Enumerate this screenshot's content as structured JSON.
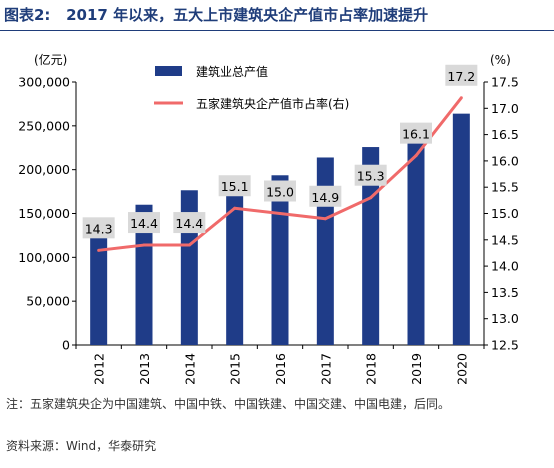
{
  "header": {
    "label": "图表2:",
    "title": "2017 年以来，五大上市建筑央企产值市占率加速提升"
  },
  "chart_data": {
    "type": "bar+line",
    "categories": [
      "2012",
      "2013",
      "2014",
      "2015",
      "2016",
      "2017",
      "2018",
      "2019",
      "2020"
    ],
    "series": [
      {
        "name": "建筑业总产值",
        "type": "bar",
        "axis": "left",
        "color": "#1f3c88",
        "values": [
          137000,
          160000,
          176500,
          180800,
          193600,
          213900,
          225800,
          248400,
          263900
        ]
      },
      {
        "name": "五家建筑央企产值市占率(右)",
        "type": "line",
        "axis": "right",
        "color": "#f06a6a",
        "values": [
          14.3,
          14.4,
          14.4,
          15.1,
          15.0,
          14.9,
          15.3,
          16.1,
          17.2
        ]
      }
    ],
    "data_labels": [
      "14.3",
      "14.4",
      "14.4",
      "15.1",
      "15.0",
      "14.9",
      "15.3",
      "16.1",
      "17.2"
    ],
    "left_axis": {
      "unit": "(亿元)",
      "ylim": [
        0,
        300000
      ],
      "ticks": [
        "0",
        "50,000",
        "100,000",
        "150,000",
        "200,000",
        "250,000",
        "300,000"
      ]
    },
    "right_axis": {
      "unit": "(%)",
      "ylim": [
        12.5,
        17.5
      ],
      "ticks": [
        "12.5",
        "13.0",
        "13.5",
        "14.0",
        "14.5",
        "15.0",
        "15.5",
        "16.0",
        "16.5",
        "17.0",
        "17.5"
      ]
    },
    "grid": false,
    "legend_position": "top-left"
  },
  "footer": {
    "note": "注：五家建筑央企为中国建筑、中国中铁、中国铁建、中国交建、中国电建，后同。",
    "source": "资料来源：Wind，华泰研究"
  }
}
